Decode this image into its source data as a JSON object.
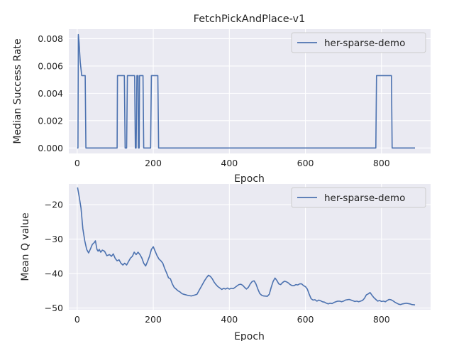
{
  "figure_title": "FetchPickAndPlace-v1",
  "chart_data": [
    {
      "type": "line",
      "title": "FetchPickAndPlace-v1",
      "xlabel": "Epoch",
      "ylabel": "Median Success Rate",
      "xlim": [
        -22,
        929
      ],
      "ylim": [
        -0.0004,
        0.0087
      ],
      "xticks": [
        0,
        200,
        400,
        600,
        800
      ],
      "xtick_labels": [
        "0",
        "200",
        "400",
        "600",
        "800"
      ],
      "yticks": [
        0,
        0.002,
        0.004,
        0.006,
        0.008
      ],
      "ytick_labels": [
        "0.000",
        "0.002",
        "0.004",
        "0.006",
        "0.008"
      ],
      "grid": true,
      "legend": "top-right",
      "series": [
        {
          "name": "her-sparse-demo",
          "color": "#4c72b0",
          "points": [
            [
              0,
              0
            ],
            [
              2,
              0
            ],
            [
              3,
              0.0083
            ],
            [
              5,
              0.0077
            ],
            [
              8,
              0.0063
            ],
            [
              12,
              0.0053
            ],
            [
              21,
              0.0053
            ],
            [
              23,
              0
            ],
            [
              105,
              0
            ],
            [
              106,
              0.0053
            ],
            [
              124,
              0.0053
            ],
            [
              126,
              0
            ],
            [
              130,
              0
            ],
            [
              132,
              0.0053
            ],
            [
              151,
              0.0053
            ],
            [
              153,
              0
            ],
            [
              155,
              0
            ],
            [
              157,
              0.0053
            ],
            [
              160,
              0.0053
            ],
            [
              161,
              0
            ],
            [
              163,
              0
            ],
            [
              164,
              0.0053
            ],
            [
              173,
              0.0053
            ],
            [
              175,
              0
            ],
            [
              193,
              0
            ],
            [
              195,
              0.0053
            ],
            [
              212,
              0.0053
            ],
            [
              214,
              0
            ],
            [
              785,
              0
            ],
            [
              787,
              0.0053
            ],
            [
              826,
              0.0053
            ],
            [
              828,
              0
            ],
            [
              888,
              0
            ]
          ]
        }
      ]
    },
    {
      "type": "line",
      "title": "",
      "xlabel": "Epoch",
      "ylabel": "Mean Q value",
      "xlim": [
        -22,
        929
      ],
      "ylim": [
        -50.5,
        -14
      ],
      "xticks": [
        0,
        200,
        400,
        600,
        800
      ],
      "xtick_labels": [
        "0",
        "200",
        "400",
        "600",
        "800"
      ],
      "yticks": [
        -50,
        -40,
        -30,
        -20
      ],
      "ytick_labels": [
        "−50",
        "−40",
        "−30",
        "−20"
      ],
      "grid": true,
      "legend": "top-right",
      "series": [
        {
          "name": "her-sparse-demo",
          "color": "#4c72b0",
          "points": [
            [
              1,
              -15
            ],
            [
              5,
              -17.5
            ],
            [
              10,
              -21
            ],
            [
              15,
              -27
            ],
            [
              20,
              -30.5
            ],
            [
              25,
              -33
            ],
            [
              30,
              -34
            ],
            [
              35,
              -32.8
            ],
            [
              40,
              -31.5
            ],
            [
              45,
              -31
            ],
            [
              48,
              -30.5
            ],
            [
              52,
              -33
            ],
            [
              55,
              -33.5
            ],
            [
              58,
              -33
            ],
            [
              62,
              -33.8
            ],
            [
              66,
              -33.2
            ],
            [
              72,
              -33.5
            ],
            [
              78,
              -34.8
            ],
            [
              85,
              -34.5
            ],
            [
              90,
              -35
            ],
            [
              95,
              -34.3
            ],
            [
              100,
              -35.6
            ],
            [
              105,
              -36.3
            ],
            [
              110,
              -36
            ],
            [
              115,
              -37
            ],
            [
              120,
              -37.5
            ],
            [
              125,
              -37
            ],
            [
              130,
              -37.5
            ],
            [
              135,
              -36.5
            ],
            [
              140,
              -35.5
            ],
            [
              145,
              -35
            ],
            [
              150,
              -33.8
            ],
            [
              155,
              -34.5
            ],
            [
              160,
              -33.8
            ],
            [
              165,
              -34.5
            ],
            [
              170,
              -35.5
            ],
            [
              175,
              -37
            ],
            [
              180,
              -37.8
            ],
            [
              185,
              -36.5
            ],
            [
              190,
              -35
            ],
            [
              195,
              -33
            ],
            [
              200,
              -32.2
            ],
            [
              205,
              -33.5
            ],
            [
              210,
              -34.8
            ],
            [
              215,
              -35.8
            ],
            [
              220,
              -36.3
            ],
            [
              225,
              -37
            ],
            [
              230,
              -38.5
            ],
            [
              235,
              -39.8
            ],
            [
              240,
              -41.2
            ],
            [
              245,
              -41.5
            ],
            [
              250,
              -43
            ],
            [
              255,
              -44
            ],
            [
              260,
              -44.5
            ],
            [
              265,
              -45
            ],
            [
              270,
              -45.3
            ],
            [
              275,
              -45.8
            ],
            [
              280,
              -46
            ],
            [
              290,
              -46.3
            ],
            [
              300,
              -46.5
            ],
            [
              310,
              -46.2
            ],
            [
              315,
              -46
            ],
            [
              320,
              -45
            ],
            [
              325,
              -44
            ],
            [
              330,
              -43
            ],
            [
              335,
              -42
            ],
            [
              340,
              -41.2
            ],
            [
              345,
              -40.5
            ],
            [
              350,
              -40.8
            ],
            [
              355,
              -41.5
            ],
            [
              360,
              -42.5
            ],
            [
              365,
              -43.2
            ],
            [
              370,
              -43.8
            ],
            [
              375,
              -44.2
            ],
            [
              380,
              -44.6
            ],
            [
              385,
              -44.3
            ],
            [
              390,
              -44.5
            ],
            [
              395,
              -44.2
            ],
            [
              400,
              -44.5
            ],
            [
              405,
              -44.3
            ],
            [
              410,
              -44.4
            ],
            [
              415,
              -44
            ],
            [
              420,
              -43.6
            ],
            [
              425,
              -43.2
            ],
            [
              430,
              -43.1
            ],
            [
              435,
              -43.4
            ],
            [
              440,
              -44
            ],
            [
              445,
              -44.5
            ],
            [
              450,
              -44
            ],
            [
              455,
              -43
            ],
            [
              460,
              -42.3
            ],
            [
              465,
              -42.1
            ],
            [
              470,
              -43
            ],
            [
              475,
              -44.5
            ],
            [
              480,
              -45.8
            ],
            [
              485,
              -46.3
            ],
            [
              490,
              -46.5
            ],
            [
              500,
              -46.6
            ],
            [
              505,
              -46
            ],
            [
              510,
              -44
            ],
            [
              515,
              -42.3
            ],
            [
              520,
              -41.3
            ],
            [
              525,
              -42
            ],
            [
              530,
              -43
            ],
            [
              535,
              -43.2
            ],
            [
              540,
              -42.6
            ],
            [
              545,
              -42.2
            ],
            [
              550,
              -42.4
            ],
            [
              555,
              -42.7
            ],
            [
              560,
              -43.2
            ],
            [
              565,
              -43.5
            ],
            [
              570,
              -43.5
            ],
            [
              575,
              -43.2
            ],
            [
              580,
              -43.3
            ],
            [
              585,
              -43
            ],
            [
              590,
              -43
            ],
            [
              595,
              -43.5
            ],
            [
              600,
              -43.8
            ],
            [
              605,
              -44.5
            ],
            [
              610,
              -46
            ],
            [
              615,
              -47.3
            ],
            [
              620,
              -47.7
            ],
            [
              625,
              -47.6
            ],
            [
              630,
              -48
            ],
            [
              635,
              -47.7
            ],
            [
              640,
              -47.9
            ],
            [
              645,
              -48.2
            ],
            [
              650,
              -48.3
            ],
            [
              655,
              -48.6
            ],
            [
              660,
              -48.8
            ],
            [
              665,
              -48.6
            ],
            [
              670,
              -48.7
            ],
            [
              675,
              -48.4
            ],
            [
              680,
              -48.2
            ],
            [
              685,
              -48
            ],
            [
              690,
              -48
            ],
            [
              695,
              -48.2
            ],
            [
              700,
              -48
            ],
            [
              705,
              -47.7
            ],
            [
              710,
              -47.6
            ],
            [
              715,
              -47.5
            ],
            [
              720,
              -47.7
            ],
            [
              725,
              -47.9
            ],
            [
              730,
              -48.1
            ],
            [
              735,
              -48
            ],
            [
              740,
              -48.2
            ],
            [
              745,
              -48
            ],
            [
              750,
              -47.8
            ],
            [
              755,
              -47.2
            ],
            [
              760,
              -46.2
            ],
            [
              765,
              -45.9
            ],
            [
              770,
              -45.5
            ],
            [
              775,
              -46.3
            ],
            [
              780,
              -47
            ],
            [
              785,
              -47.5
            ],
            [
              790,
              -48
            ],
            [
              795,
              -47.8
            ],
            [
              800,
              -48.1
            ],
            [
              805,
              -48
            ],
            [
              810,
              -48.2
            ],
            [
              815,
              -47.8
            ],
            [
              820,
              -47.5
            ],
            [
              825,
              -47.6
            ],
            [
              830,
              -47.9
            ],
            [
              835,
              -48.3
            ],
            [
              840,
              -48.6
            ],
            [
              845,
              -48.9
            ],
            [
              850,
              -49
            ],
            [
              855,
              -48.8
            ],
            [
              860,
              -48.7
            ],
            [
              865,
              -48.6
            ],
            [
              870,
              -48.7
            ],
            [
              875,
              -48.8
            ],
            [
              880,
              -49
            ],
            [
              888,
              -49.1
            ]
          ]
        }
      ]
    }
  ]
}
